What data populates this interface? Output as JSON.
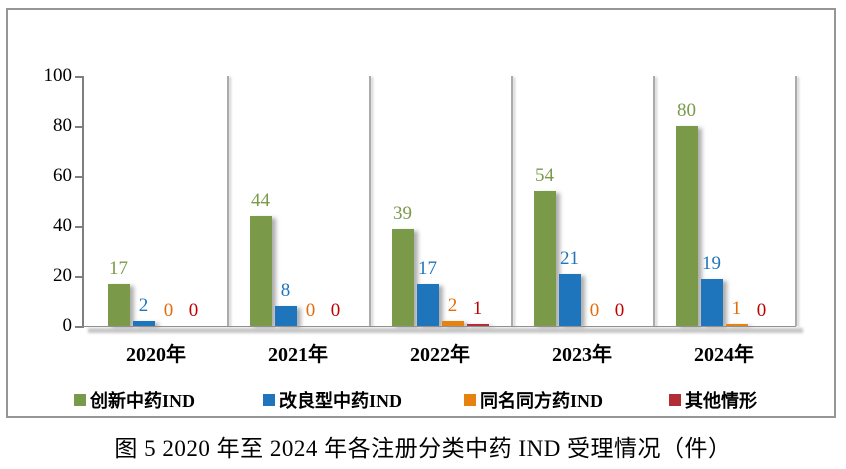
{
  "chart_data": {
    "type": "bar",
    "title": "图 5  2020 年至 2024 年各注册分类中药 IND 受理情况（件）",
    "categories": [
      "2020年",
      "2021年",
      "2022年",
      "2023年",
      "2024年"
    ],
    "series": [
      {
        "name": "创新中药IND",
        "color": "#7A9A49",
        "label_color": "#7A9A49",
        "values": [
          17,
          44,
          39,
          54,
          80
        ]
      },
      {
        "name": "改良型中药IND",
        "color": "#1F75BC",
        "label_color": "#1F75BC",
        "values": [
          2,
          8,
          17,
          21,
          19
        ]
      },
      {
        "name": "同名同方药IND",
        "color": "#E6820F",
        "label_color": "#E36C09",
        "values": [
          0,
          0,
          2,
          0,
          1
        ]
      },
      {
        "name": "其他情形",
        "color": "#B22E34",
        "label_color": "#C00000",
        "values": [
          0,
          0,
          1,
          0,
          0
        ]
      }
    ],
    "ylim": [
      0,
      100
    ],
    "yticks": [
      0,
      20,
      40,
      60,
      80,
      100
    ],
    "grid": "vertical-category-separators",
    "legend_position": "bottom",
    "axis_color": "#7f7f7f",
    "separator_color": "#ababab",
    "panel_border_color": "#969696"
  }
}
